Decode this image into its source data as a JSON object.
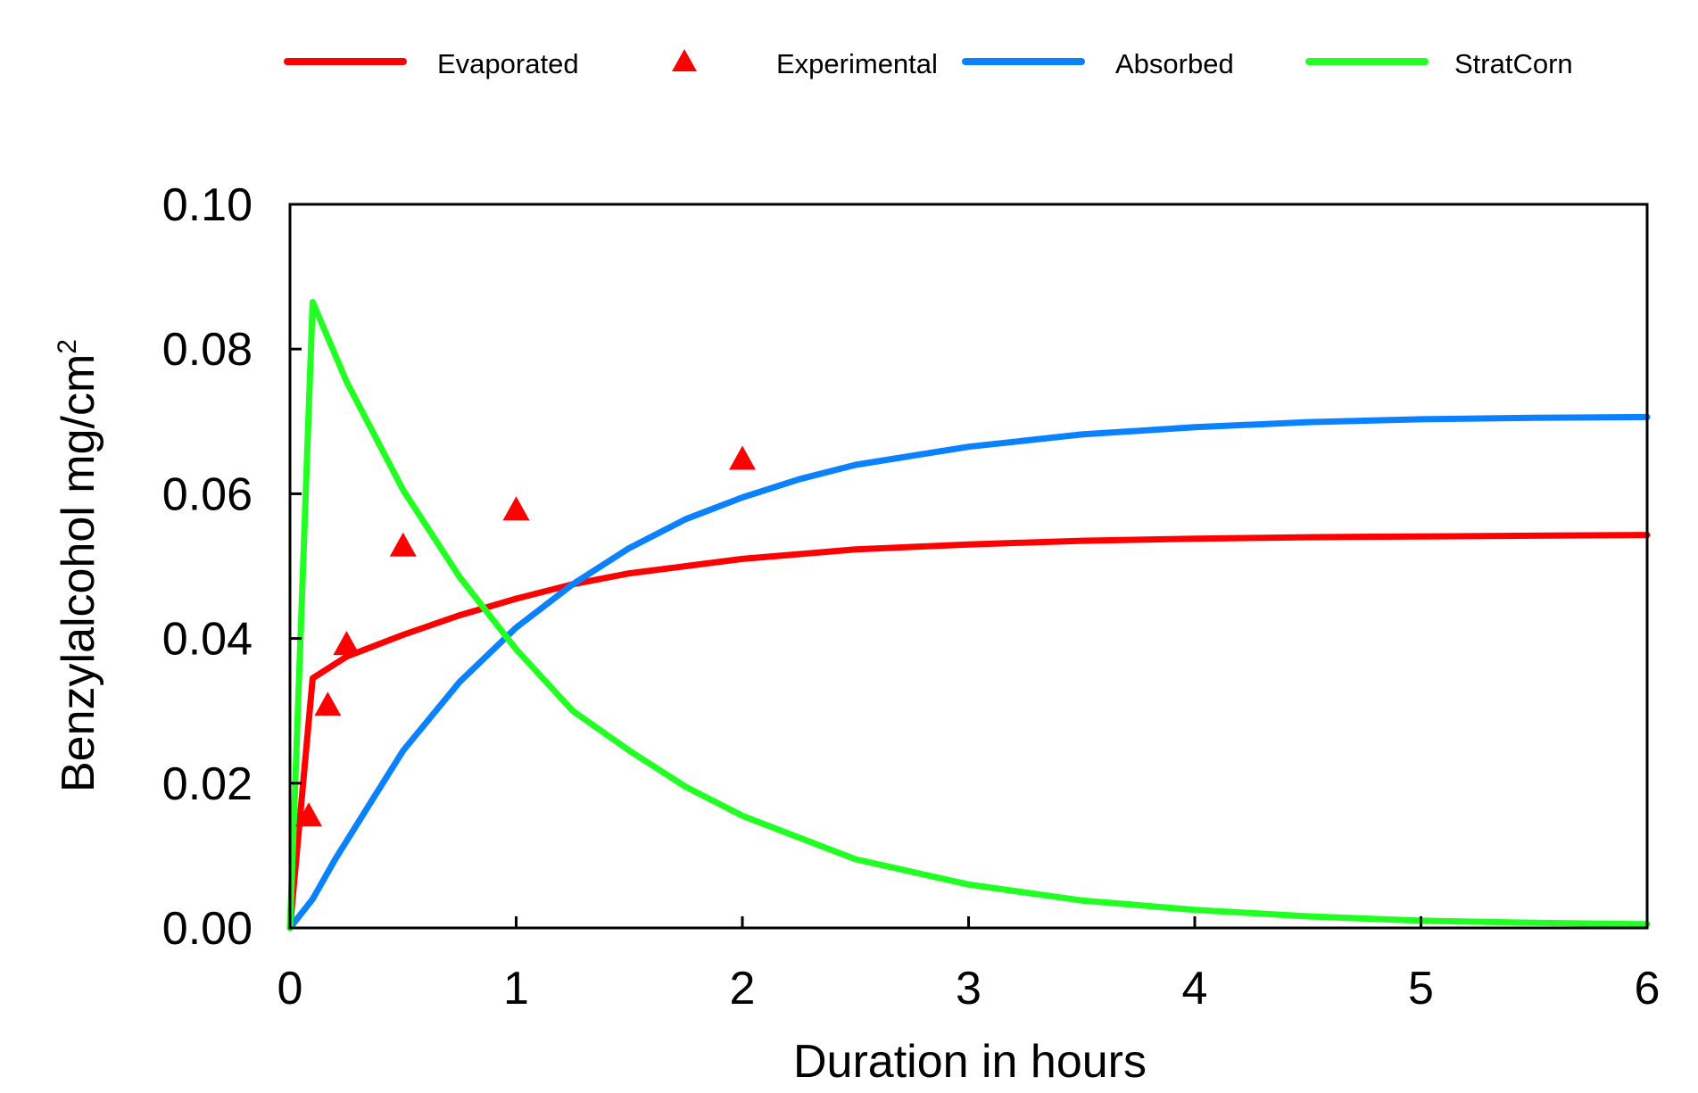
{
  "chart_data": {
    "type": "line",
    "title": "",
    "xlabel": "Duration in hours",
    "ylabel": "Benzylalcohol mg/cm",
    "ylabel_superscript": "2",
    "xlim": [
      0,
      6
    ],
    "ylim": [
      0,
      0.1
    ],
    "x_ticks": [
      0,
      1,
      2,
      3,
      4,
      5,
      6
    ],
    "x_tick_labels": [
      "0",
      "1",
      "2",
      "3",
      "4",
      "5",
      "6"
    ],
    "y_ticks": [
      0,
      0.02,
      0.04,
      0.06,
      0.08,
      0.1
    ],
    "y_tick_labels": [
      "0.00",
      "0.02",
      "0.04",
      "0.06",
      "0.08",
      "0.10"
    ],
    "grid": false,
    "legend_position": "top",
    "series": [
      {
        "name": "Evaporated",
        "kind": "line",
        "color": "#ff0000",
        "x": [
          0,
          0.1,
          0.25,
          0.5,
          0.75,
          1.0,
          1.25,
          1.5,
          1.75,
          2.0,
          2.5,
          3.0,
          3.5,
          4.0,
          4.5,
          5.0,
          5.5,
          6.0
        ],
        "y": [
          0,
          0.0345,
          0.0375,
          0.0405,
          0.0432,
          0.0455,
          0.0475,
          0.049,
          0.05,
          0.051,
          0.0523,
          0.053,
          0.0535,
          0.0538,
          0.054,
          0.0541,
          0.0542,
          0.0543
        ]
      },
      {
        "name": "Experimental",
        "kind": "scatter",
        "marker": "triangle",
        "color": "#ff0000",
        "x": [
          0.083,
          0.167,
          0.25,
          0.5,
          1.0,
          2.0
        ],
        "y": [
          0.0155,
          0.0308,
          0.0392,
          0.0528,
          0.0578,
          0.0648
        ]
      },
      {
        "name": "Absorbed",
        "kind": "line",
        "color": "#0a82ff",
        "x": [
          0,
          0.1,
          0.2,
          0.35,
          0.5,
          0.75,
          1.0,
          1.25,
          1.5,
          1.75,
          2.0,
          2.25,
          2.5,
          3.0,
          3.5,
          4.0,
          4.5,
          5.0,
          5.5,
          6.0
        ],
        "y": [
          0,
          0.004,
          0.0095,
          0.017,
          0.0245,
          0.034,
          0.0415,
          0.0475,
          0.0525,
          0.0565,
          0.0595,
          0.062,
          0.064,
          0.0665,
          0.0682,
          0.0692,
          0.0699,
          0.0703,
          0.0705,
          0.0706
        ]
      },
      {
        "name": "StratCorn",
        "kind": "line",
        "color": "#22ff22",
        "x": [
          0,
          0.1,
          0.25,
          0.5,
          0.75,
          1.0,
          1.25,
          1.5,
          1.75,
          2.0,
          2.5,
          3.0,
          3.5,
          4.0,
          4.5,
          5.0,
          5.5,
          6.0
        ],
        "y": [
          0,
          0.0865,
          0.0755,
          0.0605,
          0.0485,
          0.0385,
          0.03,
          0.0245,
          0.0195,
          0.0155,
          0.0095,
          0.006,
          0.0038,
          0.0025,
          0.0016,
          0.001,
          0.0007,
          0.0005
        ]
      }
    ]
  }
}
